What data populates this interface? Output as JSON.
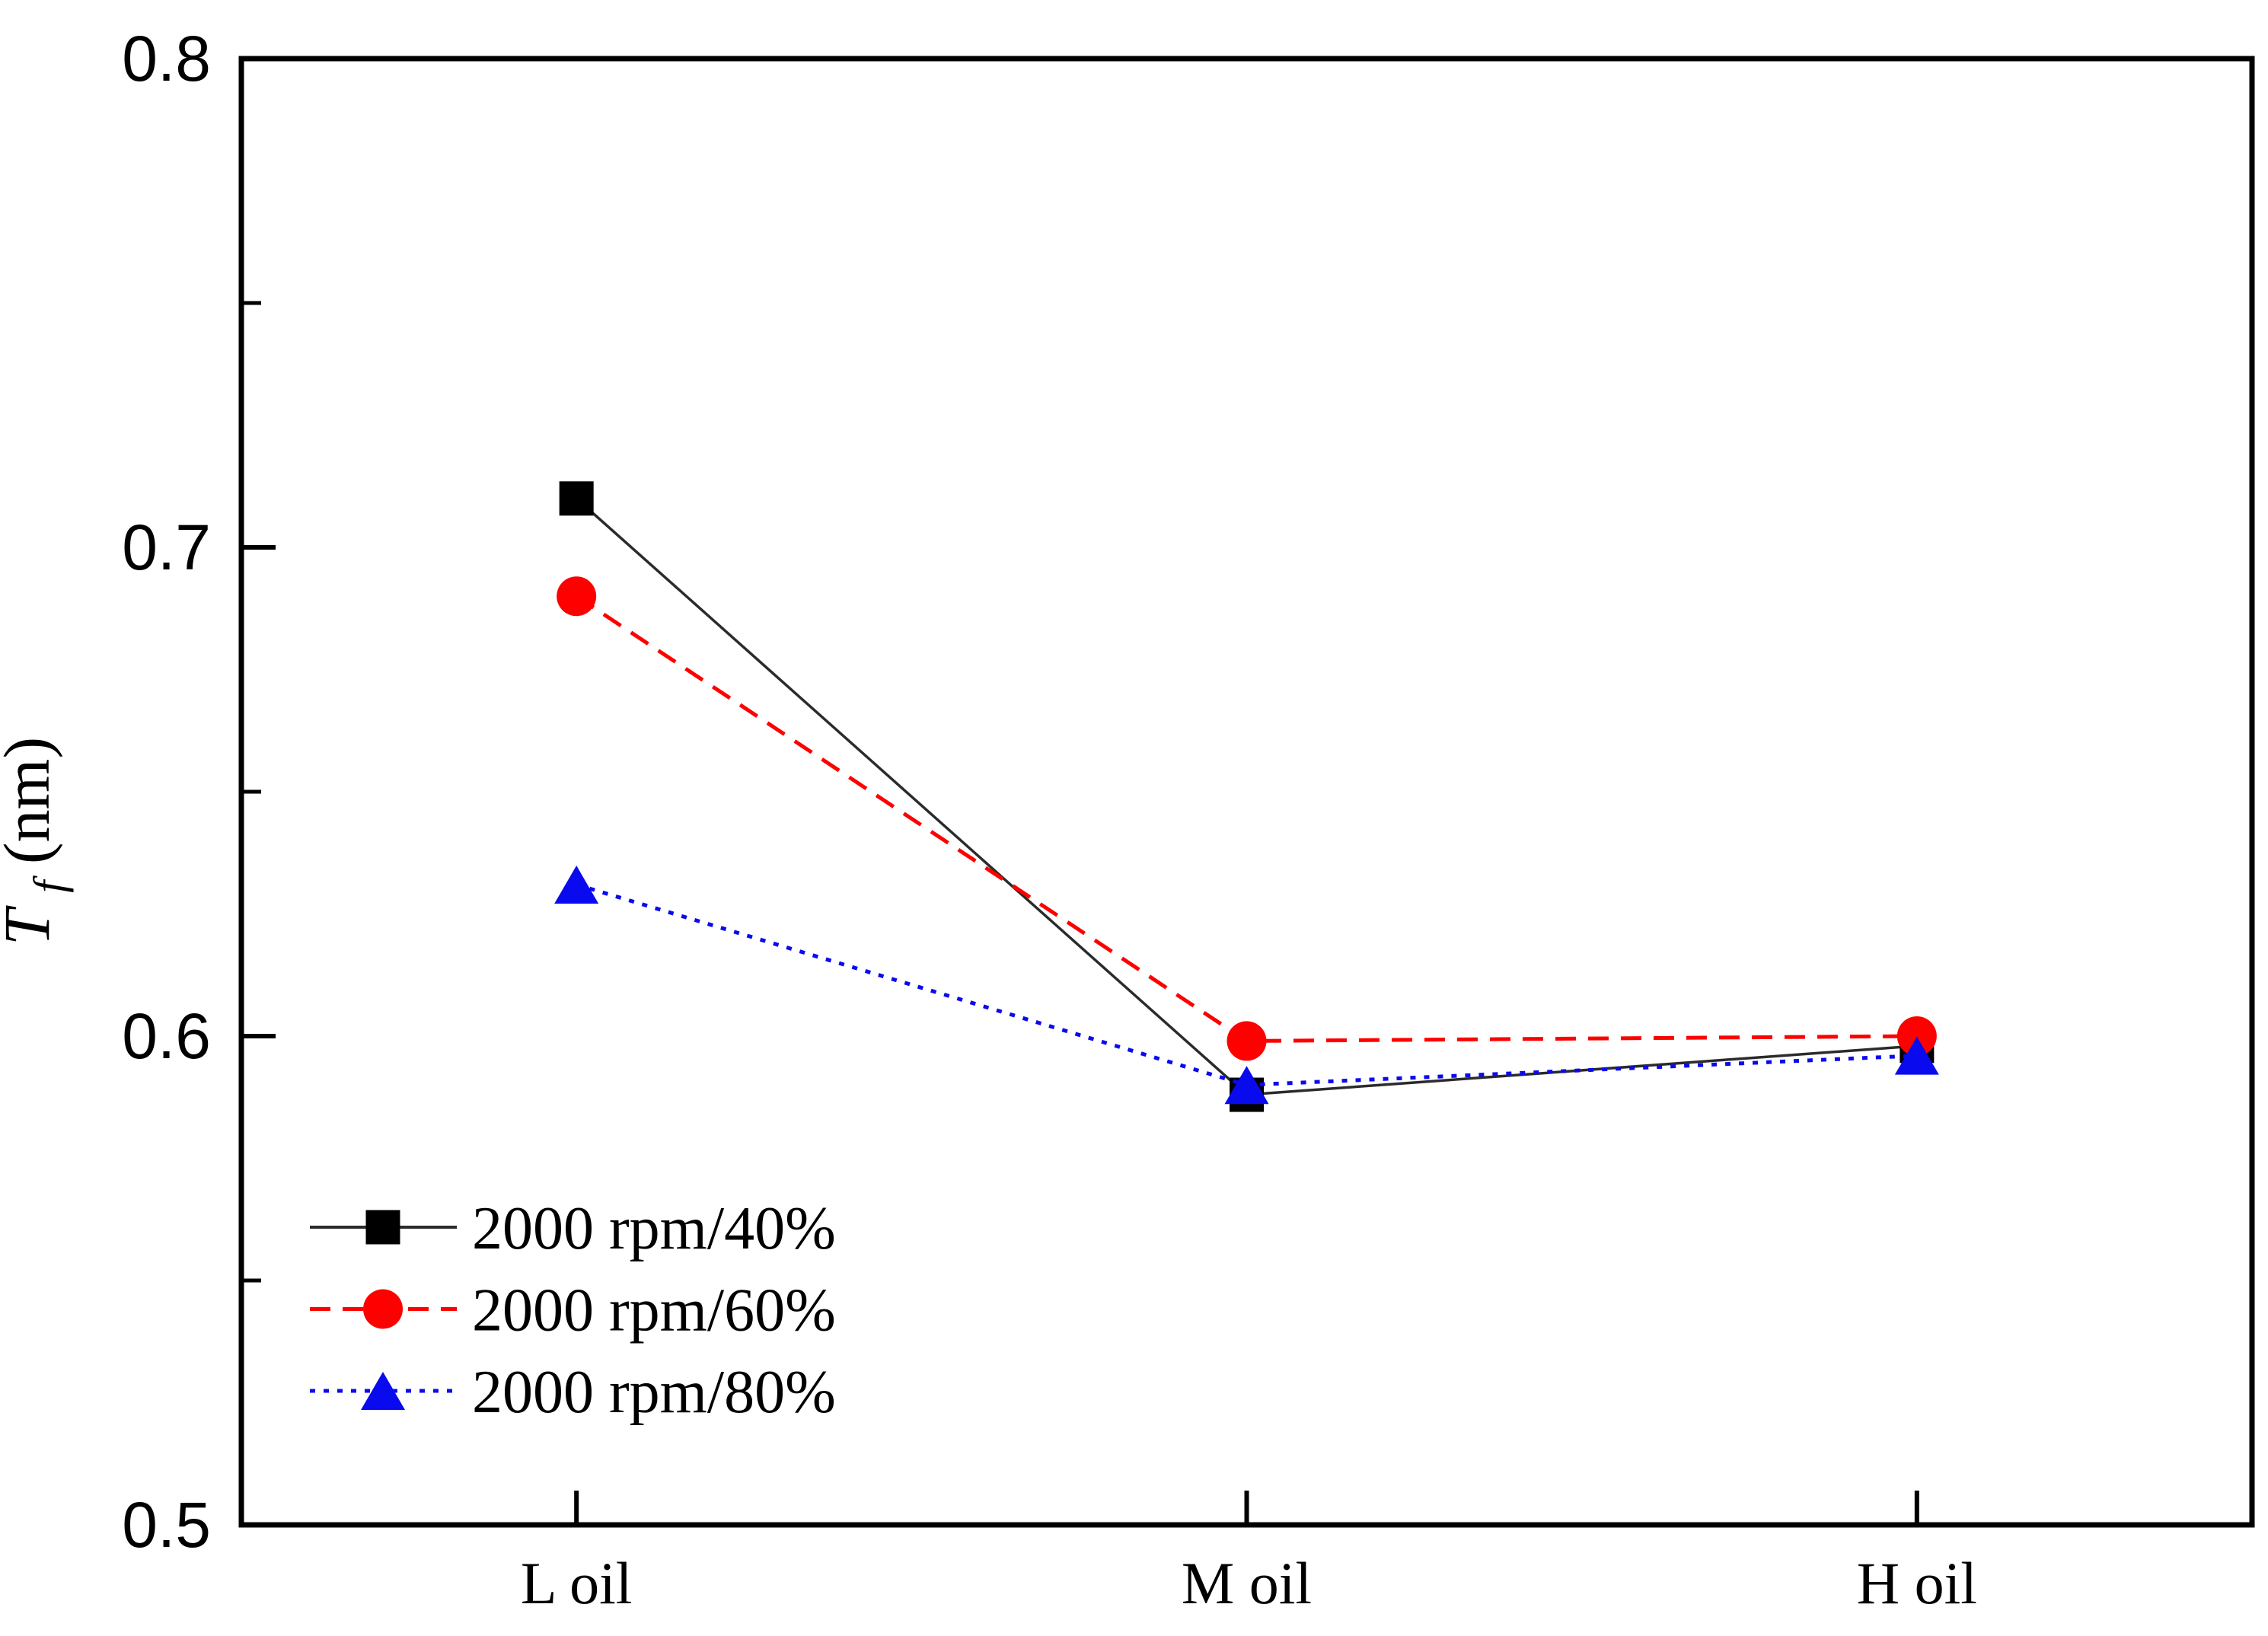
{
  "chart_data": {
    "type": "line",
    "title": "",
    "xlabel": "",
    "ylabel": {
      "symbol": "T",
      "subscript": "f",
      "unit": " (nm)"
    },
    "categories": [
      "L oil",
      "M oil",
      "H oil"
    ],
    "series": [
      {
        "name": "2000 rpm/40%",
        "marker": "square",
        "line_style": "solid",
        "color": "#000000",
        "line_color": "#2b2b2b",
        "values": [
          0.71,
          0.588,
          0.598
        ]
      },
      {
        "name": "2000 rpm/60%",
        "marker": "circle",
        "line_style": "dashed",
        "color": "#fe0000",
        "line_color": "#fe0000",
        "values": [
          0.69,
          0.599,
          0.6
        ]
      },
      {
        "name": "2000 rpm/80%",
        "marker": "triangle",
        "line_style": "dotted",
        "color": "#0a0aee",
        "line_color": "#0a0aee",
        "values": [
          0.631,
          0.59,
          0.596
        ]
      }
    ],
    "ylim": [
      0.5,
      0.8
    ],
    "yticks": [
      0.5,
      0.6,
      0.7,
      0.8
    ],
    "ytick_labels": [
      "0.5",
      "0.6",
      "0.7",
      "0.8"
    ],
    "yminor_ticks": [
      0.55,
      0.65,
      0.75
    ],
    "grid": false,
    "legend_position": "inside-bottom-left"
  }
}
